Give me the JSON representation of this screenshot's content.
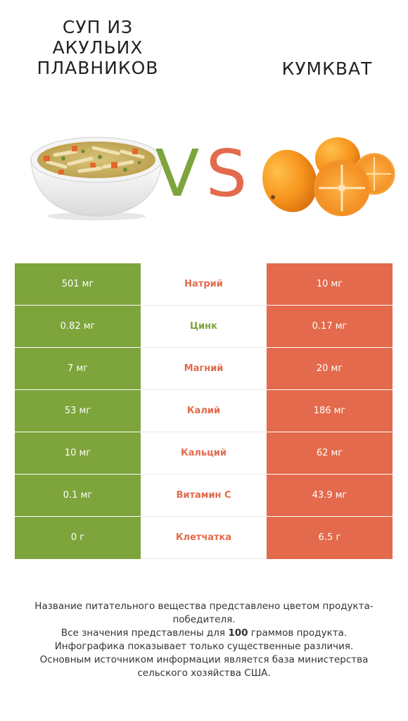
{
  "header": {
    "left_title": "Суп из акульих плавников",
    "right_title": "Кумкват",
    "vs_left_letter": "V",
    "vs_right_letter": "S"
  },
  "colors": {
    "left": "#7ea43c",
    "right": "#e36a4c"
  },
  "images": {
    "left": "soup-bowl-icon",
    "right": "kumquat-fruit-icon"
  },
  "rows": [
    {
      "nutrient": "Натрий",
      "left": "501 мг",
      "right": "10 мг",
      "winner": "right"
    },
    {
      "nutrient": "Цинк",
      "left": "0.82 мг",
      "right": "0.17 мг",
      "winner": "left"
    },
    {
      "nutrient": "Магний",
      "left": "7 мг",
      "right": "20 мг",
      "winner": "right"
    },
    {
      "nutrient": "Калий",
      "left": "53 мг",
      "right": "186 мг",
      "winner": "right"
    },
    {
      "nutrient": "Кальций",
      "left": "10 мг",
      "right": "62 мг",
      "winner": "right"
    },
    {
      "nutrient": "Витамин C",
      "left": "0.1 мг",
      "right": "43.9 мг",
      "winner": "right"
    },
    {
      "nutrient": "Клетчатка",
      "left": "0 г",
      "right": "6.5 г",
      "winner": "right"
    }
  ],
  "footer": {
    "line1": "Название питательного вещества представлено цветом продукта-победителя.",
    "line2_prefix": "Все значения представлены для ",
    "line2_bold": "100",
    "line2_suffix": " граммов продукта.",
    "line3": "Инфографика показывает только существенные различия.",
    "line4": "Основным источником информации является база министерства сельского хозяйства США."
  }
}
